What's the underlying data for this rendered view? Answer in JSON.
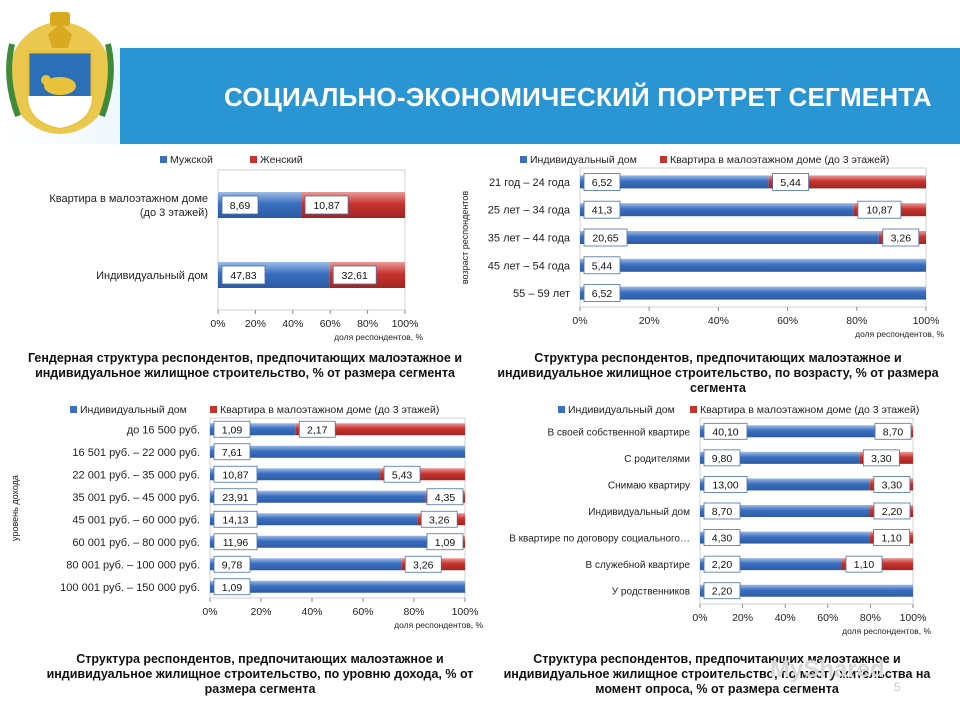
{
  "header": {
    "title": "СОЦИАЛЬНО-ЭКОНОМИЧЕСКИЙ ПОРТРЕТ СЕГМЕНТА"
  },
  "colors": {
    "blue": "#3a6fbf",
    "red": "#c8332f",
    "header": "#2a95d3"
  },
  "captions": {
    "gender": "Гендерная структура респондентов, предпочитающих малоэтажное и индивидуальное жилищное строительство, % от размера сегмента",
    "age": "Структура респондентов, предпочитающих малоэтажное и индивидуальное жилищное строительство, по возрасту, % от размера сегмента",
    "income": "Структура респондентов, предпочитающих малоэтажное и индивидуальное жилищное строительство, по уровню дохода, % от размера сегмента",
    "residence": "Структура респондентов, предпочитающих малоэтажное и индивидуальное жилищное строительство, по месту жительства на момент опроса, % от размера сегмента"
  },
  "watermark": "MyShared",
  "page_number": "5",
  "chart_data": [
    {
      "id": "gender",
      "type": "bar",
      "orientation": "horizontal",
      "stacked": "percent",
      "categories": [
        "Квартира в малоэтажном доме (до 3 этажей)",
        "Индивидуальный дом"
      ],
      "series": [
        {
          "name": "Мужской",
          "values": [
            8.69,
            47.83
          ],
          "labels": [
            "8,69",
            "47,83"
          ]
        },
        {
          "name": "Женский",
          "values": [
            10.87,
            32.61
          ],
          "labels": [
            "10,87",
            "32,61"
          ]
        }
      ],
      "xticks": [
        "0%",
        "20%",
        "40%",
        "60%",
        "80%",
        "100%"
      ],
      "xlabel": "доля респондентов, %",
      "ylabel": "",
      "xlim": [
        0,
        100
      ],
      "legend": "top"
    },
    {
      "id": "age",
      "type": "bar",
      "orientation": "horizontal",
      "stacked": "percent",
      "categories": [
        "21 год – 24 года",
        "25 лет – 34 года",
        "35 лет – 44 года",
        "45 лет – 54 года",
        "55 – 59 лет"
      ],
      "series": [
        {
          "name": "Индивидуальный дом",
          "values": [
            6.52,
            41.3,
            20.65,
            5.44,
            6.52
          ],
          "labels": [
            "6,52",
            "41,3",
            "20,65",
            "5,44",
            "6,52"
          ]
        },
        {
          "name": "Квартира в малоэтажном доме (до 3 этажей)",
          "values": [
            5.44,
            10.87,
            3.26,
            0,
            0
          ],
          "labels": [
            "5,44",
            "10,87",
            "3,26",
            "",
            ""
          ]
        }
      ],
      "xticks": [
        "0%",
        "20%",
        "40%",
        "60%",
        "80%",
        "100%"
      ],
      "xlabel": "доля респондентов, %",
      "ylabel": "возраст респондентов",
      "xlim": [
        0,
        100
      ],
      "legend": "top"
    },
    {
      "id": "income",
      "type": "bar",
      "orientation": "horizontal",
      "stacked": "percent",
      "categories": [
        "до 16 500 руб.",
        "16 501 руб. – 22 000 руб.",
        "22 001 руб. – 35 000 руб.",
        "35 001 руб. – 45 000 руб.",
        "45 001 руб. – 60 000 руб.",
        "60 001 руб. – 80 000 руб.",
        "80 001 руб. – 100 000 руб.",
        "100 001 руб. – 150 000 руб."
      ],
      "series": [
        {
          "name": "Индивидуальный дом",
          "values": [
            1.09,
            7.61,
            10.87,
            23.91,
            14.13,
            11.96,
            9.78,
            1.09
          ],
          "labels": [
            "1,09",
            "7,61",
            "10,87",
            "23,91",
            "14,13",
            "11,96",
            "9,78",
            "1,09"
          ]
        },
        {
          "name": "Квартира в малоэтажном доме (до 3 этажей)",
          "values": [
            2.17,
            0,
            5.43,
            4.35,
            3.26,
            1.09,
            3.26,
            0
          ],
          "labels": [
            "2,17",
            "",
            "5,43",
            "4,35",
            "3,26",
            "1,09",
            "3,26",
            ""
          ]
        }
      ],
      "xticks": [
        "0%",
        "20%",
        "40%",
        "60%",
        "80%",
        "100%"
      ],
      "xlabel": "доля респондентов, %",
      "ylabel": "уровень дохода",
      "xlim": [
        0,
        100
      ],
      "legend": "top"
    },
    {
      "id": "residence",
      "type": "bar",
      "orientation": "horizontal",
      "stacked": "percent",
      "categories": [
        "В своей собственной квартире",
        "С родителями",
        "Снимаю квартиру",
        "Индивидуальный дом",
        "В квартире по договору социального…",
        "В служебной квартире",
        "У родственников"
      ],
      "series": [
        {
          "name": "Индивидуальный дом",
          "values": [
            40.1,
            9.8,
            13.0,
            8.7,
            4.3,
            2.2,
            2.2
          ],
          "labels": [
            "40,10",
            "9,80",
            "13,00",
            "8,70",
            "4,30",
            "2,20",
            "2,20"
          ]
        },
        {
          "name": "Квартира в малоэтажном доме (до 3 этажей)",
          "values": [
            8.7,
            3.3,
            3.3,
            2.2,
            1.1,
            1.1,
            0
          ],
          "labels": [
            "8,70",
            "3,30",
            "3,30",
            "2,20",
            "1,10",
            "1,10",
            ""
          ]
        }
      ],
      "xticks": [
        "0%",
        "20%",
        "40%",
        "60%",
        "80%",
        "100%"
      ],
      "xlabel": "доля респондентов, %",
      "ylabel": "",
      "xlim": [
        0,
        100
      ],
      "legend": "top"
    }
  ]
}
